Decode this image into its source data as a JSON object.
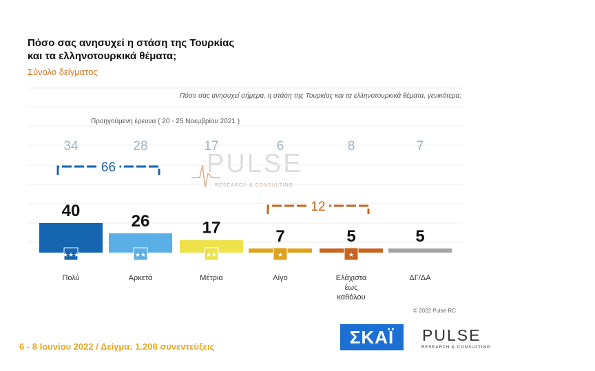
{
  "title_line1": "Πόσο σας ανησυχεί η στάση της Τουρκίας",
  "title_line2": "και τα ελληνοτουρκικά θέματα;",
  "subtitle": "Σύνολο δείγματος",
  "question": "Πόσο σας ανησυχεί σήμερα, η στάση της Τουρκίας και τα ελληνοτουρκικά θέματα, γενικότερα;",
  "previous_label": "Προηγούμενη έρευνα  ( 20 - 25 Νοεμβρίου  2021 )",
  "footer": "6 - 8  Ιουνίου  2022  /  Δείγμα:  1.206 συνεντεύξεις",
  "copyright": "© 2022 Pulse RC",
  "logos": {
    "skai": "ΣΚΑΪ",
    "pulse": "PULSE",
    "pulse_sub": "RESEARCH & CONSULTING"
  },
  "chart_data": {
    "type": "bar",
    "categories": [
      "Πολύ",
      "Αρκετά",
      "Μέτρια",
      "Λίγο",
      "Ελάχιστα έως καθόλου",
      "ΔΓ/ΔΑ"
    ],
    "series": [
      {
        "values": [
          40,
          26,
          17,
          7,
          5,
          5
        ]
      },
      {
        "name": "Προηγούμενη έρευνα  ( 20 - 25 Νοεμβρίου  2021 )",
        "values": [
          34,
          28,
          17,
          6,
          8,
          7
        ]
      }
    ],
    "groups": [
      {
        "label": "66",
        "categories": [
          "Πολύ",
          "Αρκετά"
        ]
      },
      {
        "label": "12",
        "categories": [
          "Λίγο",
          "Ελάχιστα έως καθόλου"
        ]
      }
    ],
    "colors": [
      "#1565b0",
      "#5aafe6",
      "#ede24a",
      "#e0a21c",
      "#c9641e",
      "#a3a3a3"
    ],
    "prev_color": "#9fb4c5",
    "ylim": [
      0,
      40
    ]
  }
}
